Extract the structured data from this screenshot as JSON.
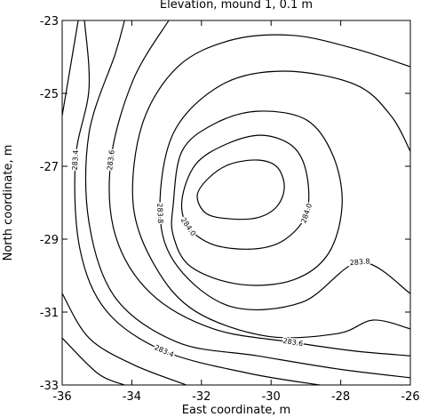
{
  "chart_data": {
    "type": "contour",
    "title": "Elevation, mound 1, 0.1 m",
    "x_label": "East coordinate, m",
    "y_label": "North coordinate, m",
    "xlim": [
      -36,
      -26
    ],
    "ylim": [
      -33,
      -23
    ],
    "xticks": [
      -36,
      -34,
      -32,
      -30,
      -28,
      -26
    ],
    "yticks": [
      -33,
      -31,
      -29,
      -27,
      -25,
      -23
    ],
    "color": "#000000",
    "contours": [
      {
        "closed": true,
        "x": [
          -32.12,
          -31.79,
          -31.2,
          -30.39,
          -29.83,
          -29.62,
          -29.83,
          -30.39,
          -31.2,
          -31.87
        ],
        "y": [
          -27.8,
          -27.32,
          -26.95,
          -26.83,
          -27.02,
          -27.56,
          -28.1,
          -28.41,
          -28.44,
          -28.29
        ]
      },
      {
        "closed": true,
        "label": "284.0",
        "x": [
          -32.56,
          -32.17,
          -31.28,
          -30.26,
          -29.37,
          -28.98,
          -28.98,
          -29.62,
          -30.52,
          -31.66,
          -32.38
        ],
        "y": [
          -27.93,
          -26.95,
          -26.39,
          -26.15,
          -26.46,
          -27.2,
          -28.29,
          -29.02,
          -29.27,
          -29.15,
          -28.66
        ]
      },
      {
        "closed": true,
        "x": [
          -32.81,
          -32.56,
          -31.66,
          -30.39,
          -28.98,
          -28.22,
          -27.96,
          -28.35,
          -29.37,
          -30.9,
          -32.3,
          -32.81
        ],
        "y": [
          -28.05,
          -26.59,
          -25.85,
          -25.49,
          -25.73,
          -26.71,
          -28.05,
          -29.39,
          -30.12,
          -30.24,
          -29.76,
          -28.9
        ]
      },
      {
        "closed": false,
        "label": "283.8",
        "x": [
          -26,
          -27.45,
          -29.11,
          -31.15,
          -32.68,
          -33.19,
          -32.81,
          -31.41,
          -29.62,
          -27.58,
          -26.56,
          -26
        ],
        "y": [
          -30.49,
          -29.63,
          -30.73,
          -30.85,
          -29.76,
          -28.29,
          -26.1,
          -24.76,
          -24.39,
          -24.76,
          -25.61,
          -26.59
        ]
      },
      {
        "closed": false,
        "x": [
          -26,
          -27.58,
          -29.37,
          -31.15,
          -32.68,
          -33.7,
          -33.96,
          -33.32,
          -32.17,
          -30.13,
          -28.09,
          -27.07,
          -26
        ],
        "y": [
          -24.27,
          -23.78,
          -23.41,
          -23.54,
          -24.27,
          -25.85,
          -28.05,
          -29.76,
          -30.98,
          -31.66,
          -31.59,
          -31.22,
          -31.46
        ]
      },
      {
        "closed": false,
        "label": "283.6",
        "x": [
          -26,
          -27.58,
          -29.37,
          -31.66,
          -33.45,
          -34.47,
          -34.6,
          -33.96,
          -32.94
        ],
        "y": [
          -32.2,
          -32.07,
          -31.83,
          -31.46,
          -30.49,
          -28.9,
          -26.83,
          -24.63,
          -23.0
        ]
      },
      {
        "closed": false,
        "x": [
          -26,
          -28.09,
          -30.39,
          -32.68,
          -34.47,
          -35.23,
          -35.23,
          -34.47,
          -34.21
        ],
        "y": [
          -32.8,
          -32.56,
          -32.2,
          -31.83,
          -30.61,
          -28.54,
          -26.1,
          -23.9,
          -23.0
        ]
      },
      {
        "closed": false,
        "label": "283.4",
        "x": [
          -28.6,
          -30.64,
          -33.07,
          -34.72,
          -35.49,
          -35.62,
          -35.23,
          -35.36
        ],
        "y": [
          -33.0,
          -32.68,
          -32.07,
          -30.98,
          -29.27,
          -26.83,
          -24.88,
          -23.0
        ]
      },
      {
        "closed": false,
        "x": [
          -35.54,
          -35.87,
          -36
        ],
        "y": [
          -23.0,
          -24.88,
          -25.61
        ]
      },
      {
        "closed": false,
        "x": [
          -36,
          -35.23,
          -33.96,
          -32.43
        ],
        "y": [
          -30.49,
          -31.71,
          -32.44,
          -33.0
        ]
      },
      {
        "closed": false,
        "x": [
          -36,
          -34.98,
          -34.21
        ],
        "y": [
          -31.71,
          -32.68,
          -33.0
        ]
      }
    ]
  }
}
